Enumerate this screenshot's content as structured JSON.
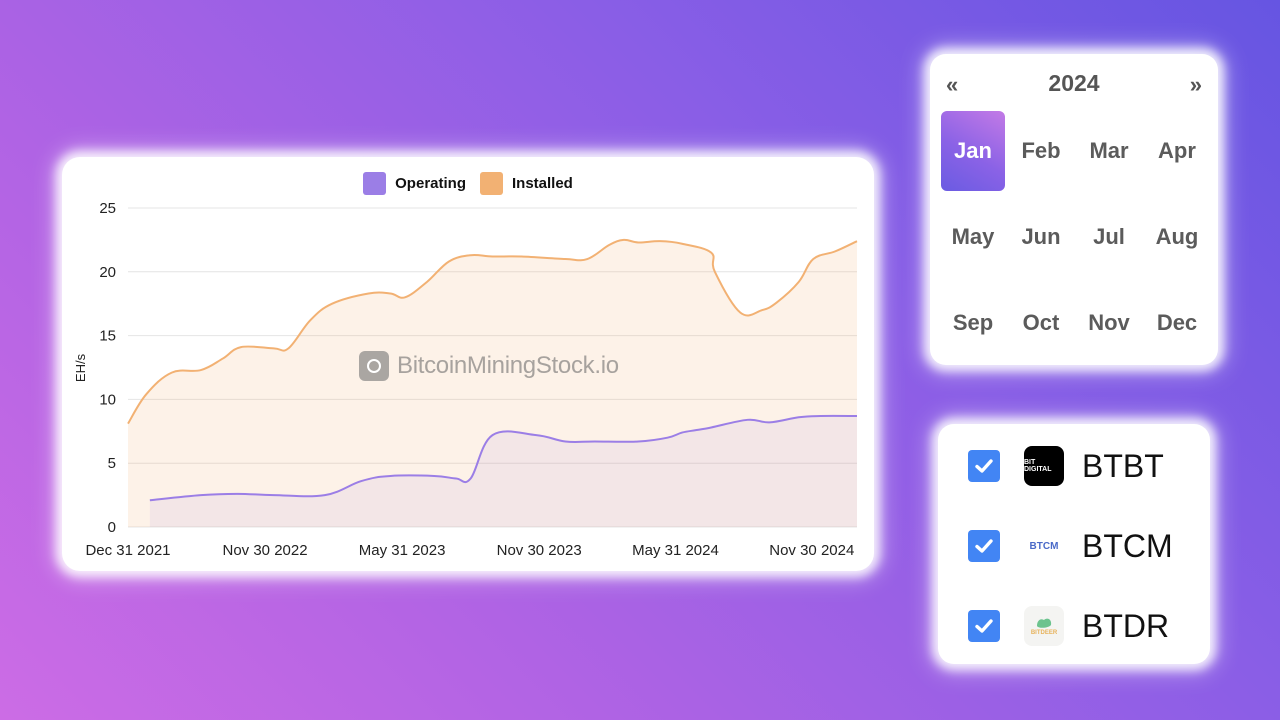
{
  "chart": {
    "legend": [
      {
        "label": "Operating",
        "color": "#9b7ee6"
      },
      {
        "label": "Installed",
        "color": "#f2b173"
      }
    ],
    "watermark": "BitcoinMiningStock.io",
    "ylabel": "EH/s",
    "yticks": [
      "0",
      "5",
      "10",
      "15",
      "20",
      "25"
    ],
    "xticks": [
      "Dec 31 2021",
      "Nov 30 2022",
      "May 31 2023",
      "Nov 30 2023",
      "May 31 2024",
      "Nov 30 2024"
    ]
  },
  "chart_data": {
    "type": "area",
    "title": "",
    "xlabel": "",
    "ylabel": "EH/s",
    "ylim": [
      0,
      25
    ],
    "grid": true,
    "legend_position": "top",
    "x_tick_labels": [
      "Dec 31 2021",
      "Nov 30 2022",
      "May 31 2023",
      "Nov 30 2023",
      "May 31 2024",
      "Nov 30 2024"
    ],
    "series": [
      {
        "name": "Installed",
        "color": "#f2b173",
        "points_x_frac": [
          0,
          0.025,
          0.06,
          0.1,
          0.13,
          0.155,
          0.2,
          0.22,
          0.25,
          0.28,
          0.33,
          0.36,
          0.38,
          0.41,
          0.44,
          0.47,
          0.5,
          0.54,
          0.6,
          0.63,
          0.66,
          0.68,
          0.7,
          0.73,
          0.76,
          0.8,
          0.805,
          0.84,
          0.87,
          0.89,
          0.92,
          0.94,
          0.97,
          1.0
        ],
        "values": [
          8.1,
          10.4,
          12.1,
          12.3,
          13.2,
          14.1,
          14.0,
          14.0,
          16.2,
          17.5,
          18.3,
          18.3,
          18.0,
          19.2,
          20.8,
          21.3,
          21.2,
          21.2,
          21.0,
          21.0,
          22.1,
          22.5,
          22.3,
          22.4,
          22.2,
          21.5,
          20.0,
          16.8,
          17.0,
          17.6,
          19.2,
          21.0,
          21.6,
          22.4
        ]
      },
      {
        "name": "Operating",
        "color": "#9b7ee6",
        "points_x_frac": [
          0.03,
          0.1,
          0.15,
          0.2,
          0.27,
          0.32,
          0.36,
          0.42,
          0.45,
          0.47,
          0.5,
          0.56,
          0.6,
          0.64,
          0.7,
          0.74,
          0.76,
          0.78,
          0.8,
          0.85,
          0.88,
          0.92,
          0.95,
          1.0
        ],
        "values": [
          2.1,
          2.5,
          2.6,
          2.5,
          2.5,
          3.6,
          4.0,
          4.0,
          3.8,
          3.8,
          7.2,
          7.2,
          6.7,
          6.7,
          6.7,
          7.0,
          7.4,
          7.6,
          7.8,
          8.4,
          8.2,
          8.6,
          8.7,
          8.7
        ]
      }
    ]
  },
  "calendar": {
    "year": "2024",
    "prev": "«",
    "next": "»",
    "months": [
      "Jan",
      "Feb",
      "Mar",
      "Apr",
      "May",
      "Jun",
      "Jul",
      "Aug",
      "Sep",
      "Oct",
      "Nov",
      "Dec"
    ],
    "selected": "Jan"
  },
  "tickers": [
    {
      "symbol": "BTBT",
      "checked": true,
      "logo_text": "BIT DIGITAL"
    },
    {
      "symbol": "BTCM",
      "checked": true,
      "logo_text": "BTCM"
    },
    {
      "symbol": "BTDR",
      "checked": true,
      "logo_text": "BITDEER"
    }
  ]
}
